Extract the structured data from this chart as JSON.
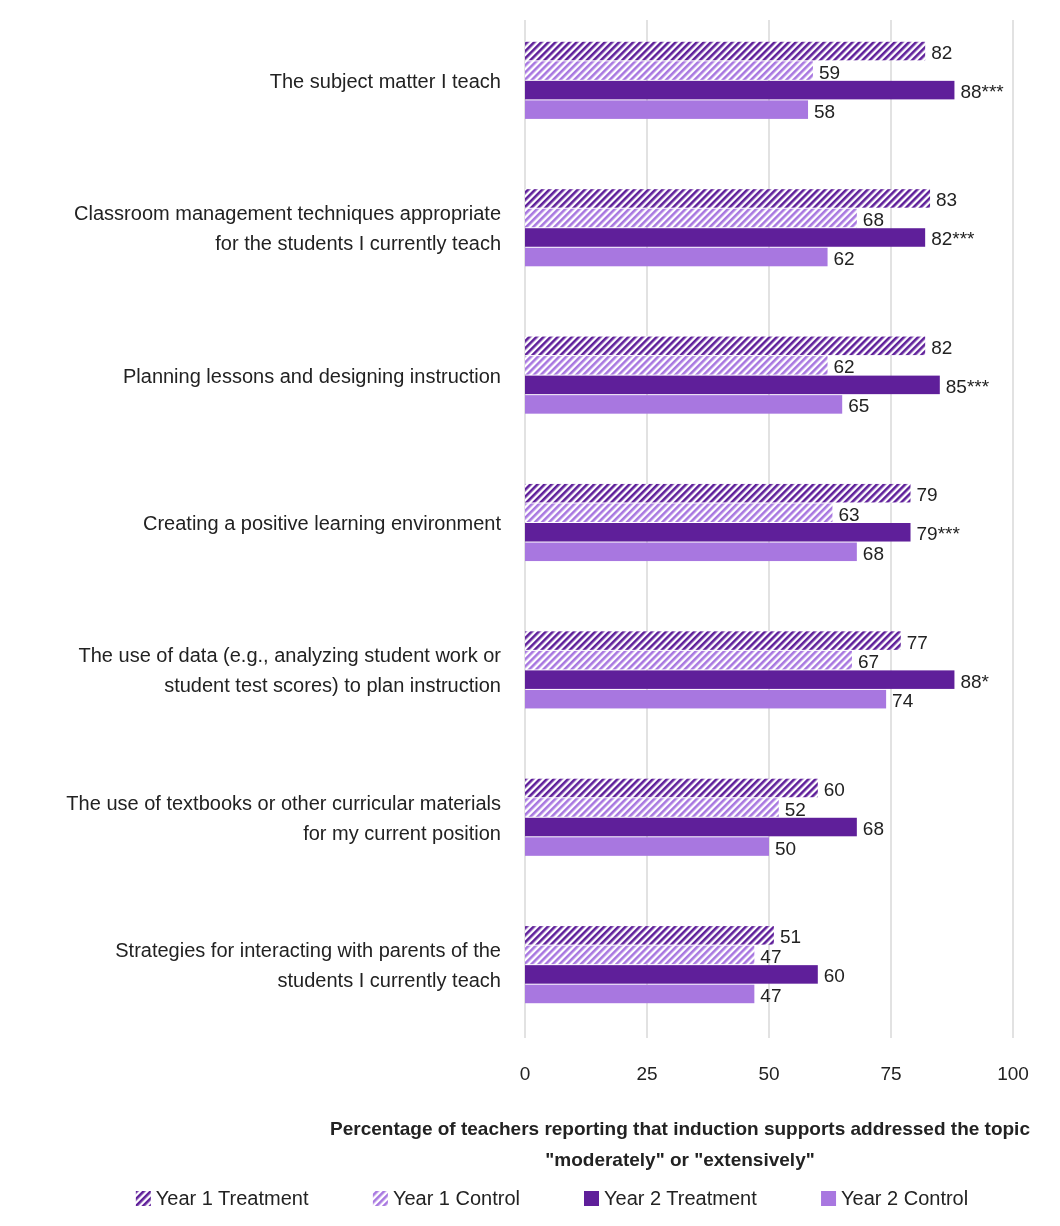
{
  "chart_data": {
    "type": "bar",
    "orientation": "horizontal",
    "categories": [
      "The subject matter I teach",
      "Classroom management techniques appropriate for the students I currently teach",
      "Planning lessons and designing instruction",
      "Creating a positive learning environment",
      "The use of data (e.g., analyzing student work or student test scores) to plan instruction",
      "The use of textbooks or other curricular materials for my current position",
      "Strategies for interacting with parents of the students I currently teach"
    ],
    "series": [
      {
        "name": "Year 1 Treatment",
        "color": "#5f1f9a",
        "values": [
          82,
          83,
          82,
          79,
          77,
          60,
          51
        ],
        "value_labels": [
          "82",
          "83",
          "82",
          "79",
          "77",
          "60",
          "51"
        ]
      },
      {
        "name": "Year 1 Control",
        "color": "#a877e0",
        "values": [
          59,
          68,
          62,
          63,
          67,
          52,
          47
        ],
        "value_labels": [
          "59",
          "68",
          "62",
          "63",
          "67",
          "52",
          "47"
        ]
      },
      {
        "name": "Year 2 Treatment",
        "color": "#5f1f9a",
        "values": [
          88,
          82,
          85,
          79,
          88,
          68,
          60
        ],
        "value_labels": [
          "88***",
          "82***",
          "85***",
          "79***",
          "88*",
          "68",
          "60"
        ]
      },
      {
        "name": "Year 2 Control",
        "color": "#a877e0",
        "values": [
          58,
          62,
          65,
          68,
          74,
          50,
          47
        ],
        "value_labels": [
          "58",
          "62",
          "65",
          "68",
          "74",
          "50",
          "47"
        ]
      }
    ],
    "xlim": [
      0,
      100
    ],
    "xticks": [
      0,
      25,
      50,
      75,
      100
    ],
    "grid": "x",
    "legend": "bottom",
    "xlabel": "Percentage of teachers reporting that induction supports addressed the topic \"moderately\" or \"extensively\""
  }
}
